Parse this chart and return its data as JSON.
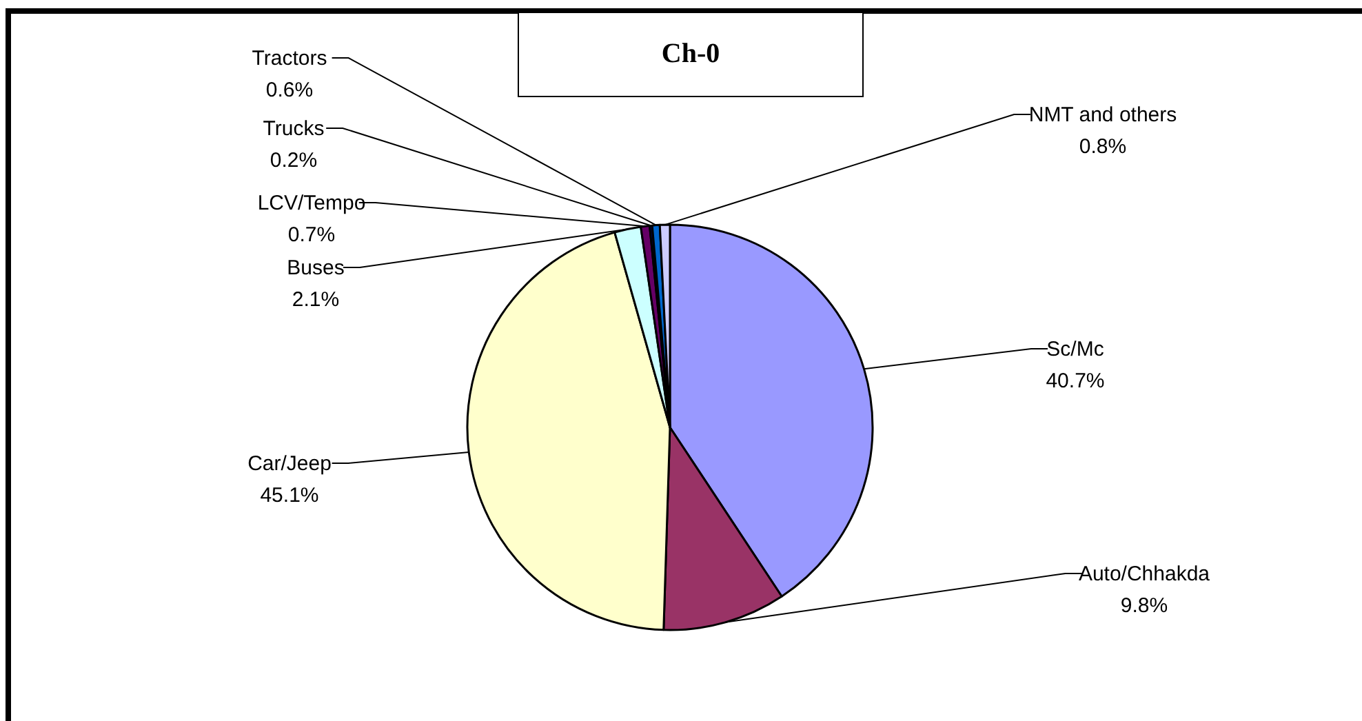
{
  "chart_data": {
    "type": "pie",
    "title": "Ch-0",
    "categories": [
      "Sc/Mc",
      "Auto/Chhakda",
      "Car/Jeep",
      "Buses",
      "LCV/Tempo",
      "Trucks",
      "Tractors",
      "NMT and others"
    ],
    "values": [
      40.7,
      9.8,
      45.1,
      2.1,
      0.7,
      0.2,
      0.6,
      0.8
    ],
    "colors": [
      "#9999ff",
      "#993366",
      "#ffffcc",
      "#ccffff",
      "#660066",
      "#000080",
      "#0066cc",
      "#ccccff"
    ],
    "value_labels": [
      "40.7%",
      "9.8%",
      "45.1%",
      "2.1%",
      "0.7%",
      "0.2%",
      "0.6%",
      "0.8%"
    ],
    "legend": false
  }
}
